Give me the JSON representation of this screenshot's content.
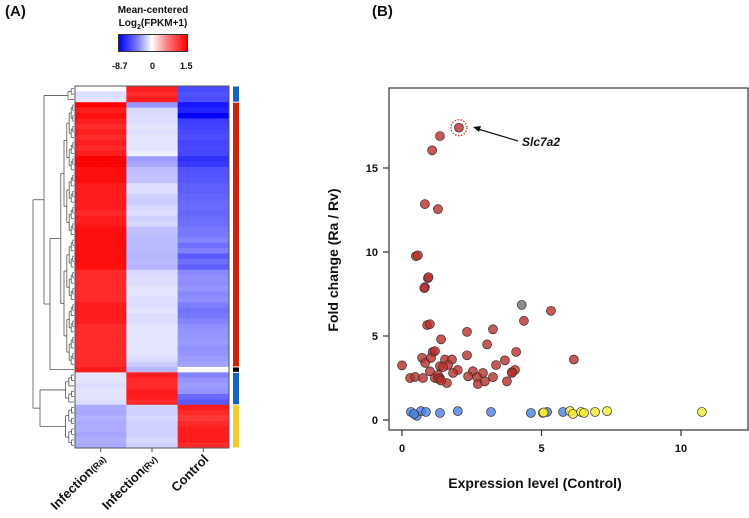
{
  "panels": {
    "a_label": "(A)",
    "b_label": "(B)"
  },
  "chart_data": [
    {
      "type": "heatmap",
      "colorbar": {
        "title_line1": "Mean-centered",
        "title_prefix": "Log",
        "title_sub": "2",
        "title_suffix": "(FPKM+1)",
        "min_label": "-8.7",
        "mid_label": "0",
        "max_label": "1.5",
        "range": [
          -8.7,
          1.5
        ],
        "colors": {
          "low": "#0000ff",
          "mid": "#ffffff",
          "high": "#ff0000"
        }
      },
      "columns": [
        {
          "main": "Infection",
          "sub": "(Ra)"
        },
        {
          "main": "Infection",
          "sub": "(Rv)"
        },
        {
          "main": "Control",
          "sub": ""
        }
      ],
      "row_groups": [
        {
          "count": 3,
          "color": "#1565c0"
        },
        {
          "count": 49,
          "color": "#c8260a"
        },
        {
          "count": 1,
          "color": "#000000"
        },
        {
          "count": 6,
          "color": "#1565c0"
        },
        {
          "count": 8,
          "color": "#f2cc2c"
        }
      ],
      "rows": [
        [
          0.0,
          1.3,
          -5.0
        ],
        [
          -0.3,
          1.2,
          -4.6
        ],
        [
          -0.2,
          1.3,
          -4.8
        ],
        [
          1.5,
          -2.0,
          -7.5
        ],
        [
          1.3,
          -0.4,
          -6.8
        ],
        [
          1.4,
          -0.3,
          -8.7
        ],
        [
          1.3,
          -0.3,
          -5.5
        ],
        [
          1.2,
          -0.2,
          -5.3
        ],
        [
          1.3,
          -0.3,
          -5.0
        ],
        [
          1.2,
          -0.2,
          -4.8
        ],
        [
          1.3,
          -0.2,
          -5.2
        ],
        [
          1.2,
          -0.2,
          -5.0
        ],
        [
          1.3,
          -0.1,
          -5.1
        ],
        [
          1.5,
          -1.8,
          -6.2
        ],
        [
          1.5,
          -1.5,
          -5.8
        ],
        [
          1.4,
          -0.9,
          -4.6
        ],
        [
          1.4,
          -0.8,
          -4.5
        ],
        [
          1.4,
          -0.8,
          -4.4
        ],
        [
          1.3,
          -0.3,
          -4.0
        ],
        [
          1.3,
          -0.3,
          -4.0
        ],
        [
          1.3,
          -0.5,
          -3.8
        ],
        [
          1.3,
          -0.6,
          -3.6
        ],
        [
          1.3,
          -0.4,
          -3.5
        ],
        [
          1.2,
          -0.3,
          -3.7
        ],
        [
          1.3,
          -0.5,
          -3.5
        ],
        [
          1.3,
          -0.4,
          -3.4
        ],
        [
          1.4,
          -0.8,
          -3.0
        ],
        [
          1.4,
          -0.9,
          -3.0
        ],
        [
          1.4,
          -1.0,
          -2.6
        ],
        [
          1.4,
          -1.0,
          -3.4
        ],
        [
          1.4,
          -1.0,
          -2.8
        ],
        [
          1.4,
          -1.1,
          -4.2
        ],
        [
          1.4,
          -1.0,
          -3.4
        ],
        [
          1.4,
          -1.1,
          -4.0
        ],
        [
          1.2,
          -0.4,
          -2.4
        ],
        [
          1.2,
          -0.3,
          -2.2
        ],
        [
          1.2,
          -0.3,
          -2.3
        ],
        [
          1.2,
          -0.2,
          -2.0
        ],
        [
          1.2,
          -0.2,
          -2.4
        ],
        [
          1.2,
          -0.3,
          -2.2
        ],
        [
          1.3,
          -0.3,
          -2.8
        ],
        [
          1.3,
          -0.2,
          -3.2
        ],
        [
          1.3,
          -0.3,
          -3.0
        ],
        [
          1.3,
          -0.3,
          -2.6
        ],
        [
          1.2,
          -0.2,
          -2.2
        ],
        [
          1.2,
          -0.2,
          -2.0
        ],
        [
          1.2,
          -0.2,
          -2.0
        ],
        [
          1.2,
          -0.2,
          -1.9
        ],
        [
          1.2,
          -0.2,
          -2.1
        ],
        [
          1.2,
          -0.2,
          -2.0
        ],
        [
          1.2,
          -0.3,
          -1.8
        ],
        [
          1.2,
          -0.6,
          -1.6
        ],
        [
          1.3,
          -1.0,
          0.0
        ],
        [
          -0.2,
          1.3,
          -2.6
        ],
        [
          -0.2,
          1.2,
          -2.0
        ],
        [
          -0.3,
          1.2,
          -1.8
        ],
        [
          -0.2,
          1.3,
          -2.0
        ],
        [
          -0.2,
          1.3,
          -3.6
        ],
        [
          -0.3,
          1.2,
          -4.2
        ],
        [
          -1.4,
          -0.5,
          1.3
        ],
        [
          -1.5,
          -0.5,
          1.2
        ],
        [
          -1.2,
          -0.4,
          1.1
        ],
        [
          -1.4,
          -0.5,
          1.2
        ],
        [
          -1.3,
          -0.5,
          1.3
        ],
        [
          -1.5,
          -0.5,
          1.3
        ],
        [
          -1.3,
          -0.4,
          1.3
        ],
        [
          -1.4,
          -0.5,
          1.2
        ]
      ]
    },
    {
      "type": "scatter",
      "xlabel": "Expression level (Control)",
      "ylabel": "Fold change (Ra / Rv)",
      "xlim": [
        -0.5,
        12.4
      ],
      "ylim": [
        -0.6,
        19.6
      ],
      "xticks": [
        0,
        5,
        10
      ],
      "yticks": [
        0,
        5,
        10,
        15
      ],
      "grid": false,
      "annotation": {
        "text": "Slc7a2",
        "x": 2.04,
        "y": 17.4
      },
      "series": [
        {
          "color": "#b8302c",
          "points": [
            [
              2.04,
              17.4
            ],
            [
              1.36,
              16.9
            ],
            [
              1.08,
              16.05
            ],
            [
              0.82,
              12.85
            ],
            [
              1.29,
              12.55
            ],
            [
              0.5,
              9.75
            ],
            [
              0.57,
              9.8
            ],
            [
              0.93,
              8.45
            ],
            [
              0.95,
              8.5
            ],
            [
              0.82,
              7.9
            ],
            [
              0.8,
              7.85
            ],
            [
              5.34,
              6.5
            ],
            [
              4.37,
              5.9
            ],
            [
              0.9,
              5.65
            ],
            [
              1.0,
              5.7
            ],
            [
              2.33,
              5.25
            ],
            [
              3.26,
              5.4
            ],
            [
              1.4,
              4.8
            ],
            [
              3.05,
              4.5
            ],
            [
              1.1,
              4.05
            ],
            [
              1.18,
              4.1
            ],
            [
              2.33,
              3.85
            ],
            [
              4.09,
              4.05
            ],
            [
              0.72,
              3.7
            ],
            [
              0.83,
              3.4
            ],
            [
              1.04,
              3.7
            ],
            [
              1.54,
              3.6
            ],
            [
              1.79,
              3.6
            ],
            [
              3.69,
              3.55
            ],
            [
              6.16,
              3.6
            ],
            [
              0.0,
              3.25
            ],
            [
              3.37,
              3.27
            ],
            [
              1.36,
              3.2
            ],
            [
              1.65,
              3.27
            ],
            [
              1.47,
              3.15
            ],
            [
              1.0,
              2.9
            ],
            [
              2.0,
              2.98
            ],
            [
              2.54,
              2.9
            ],
            [
              2.9,
              2.8
            ],
            [
              1.83,
              2.8
            ],
            [
              3.94,
              2.85
            ],
            [
              4.05,
              2.98
            ],
            [
              0.29,
              2.5
            ],
            [
              0.47,
              2.56
            ],
            [
              0.75,
              2.5
            ],
            [
              1.18,
              2.5
            ],
            [
              1.36,
              2.5
            ],
            [
              1.29,
              2.68
            ],
            [
              1.61,
              2.2
            ],
            [
              2.37,
              2.6
            ],
            [
              2.69,
              2.55
            ],
            [
              3.26,
              2.55
            ],
            [
              2.72,
              2.14
            ],
            [
              2.97,
              2.3
            ],
            [
              3.76,
              2.3
            ],
            [
              3.94,
              2.8
            ],
            [
              1.3,
              2.45
            ],
            [
              1.4,
              2.35
            ]
          ]
        },
        {
          "color": "#707070",
          "points": [
            [
              4.29,
              6.85
            ]
          ]
        },
        {
          "color": "#4a80e0",
          "points": [
            [
              0.32,
              0.48
            ],
            [
              0.53,
              0.25
            ],
            [
              0.68,
              0.53
            ],
            [
              0.86,
              0.48
            ],
            [
              1.36,
              0.42
            ],
            [
              2.0,
              0.53
            ],
            [
              3.19,
              0.48
            ],
            [
              4.62,
              0.42
            ],
            [
              5.2,
              0.48
            ],
            [
              5.77,
              0.48
            ],
            [
              0.43,
              0.36
            ]
          ]
        },
        {
          "color": "#f5ee30",
          "points": [
            [
              5.05,
              0.42
            ],
            [
              5.08,
              0.45
            ],
            [
              6.02,
              0.53
            ],
            [
              6.13,
              0.36
            ],
            [
              6.42,
              0.48
            ],
            [
              6.52,
              0.42
            ],
            [
              6.92,
              0.48
            ],
            [
              7.35,
              0.53
            ],
            [
              10.75,
              0.48
            ]
          ]
        }
      ]
    }
  ]
}
